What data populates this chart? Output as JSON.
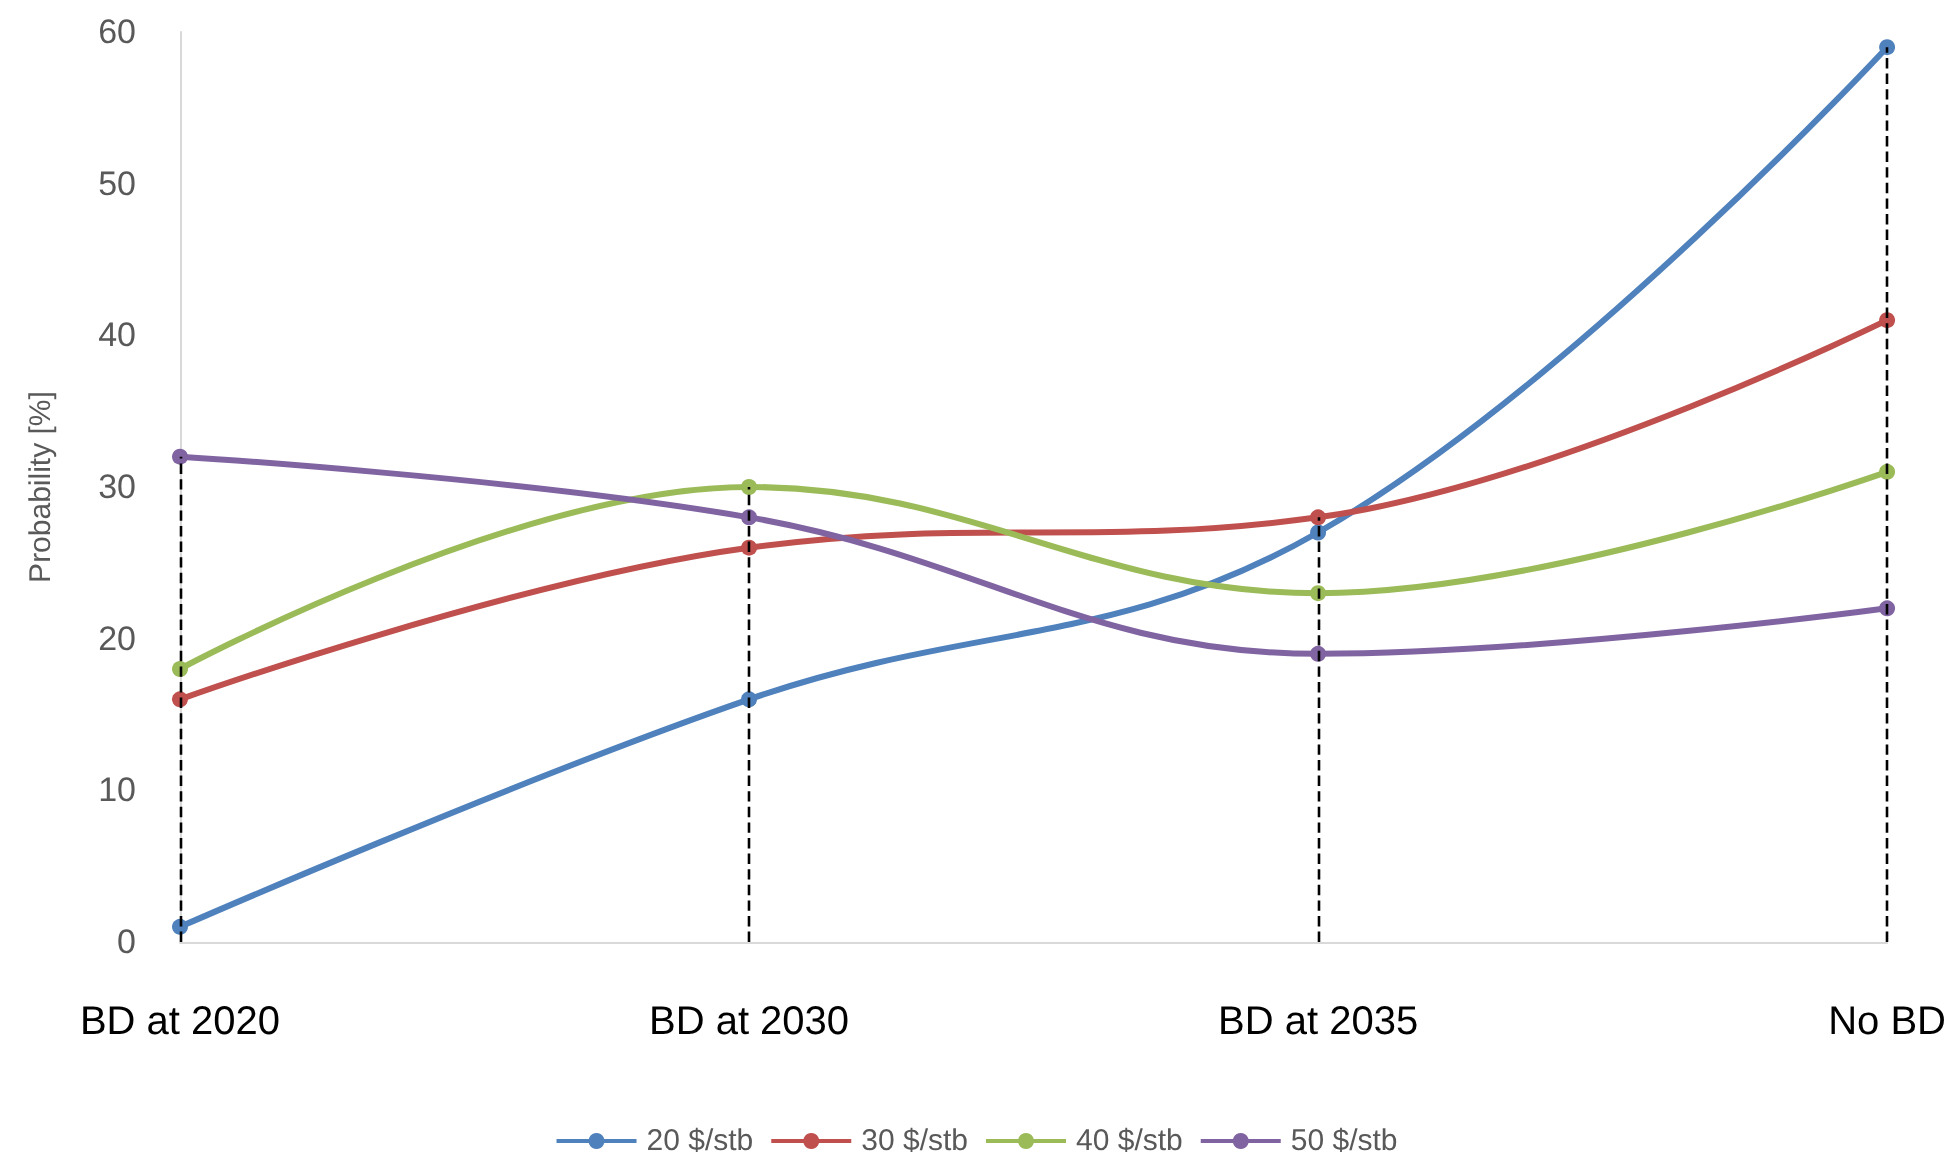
{
  "chart_data": {
    "type": "line",
    "ylabel": "Probability [%]",
    "categories": [
      "BD at 2020",
      "BD at 2030",
      "BD at 2035",
      "No BD"
    ],
    "series": [
      {
        "name": "20 $/stb",
        "color": "#4f81bd",
        "values": [
          1,
          16,
          27,
          59
        ]
      },
      {
        "name": "30 $/stb",
        "color": "#c0504d",
        "values": [
          16,
          26,
          28,
          41
        ]
      },
      {
        "name": "40 $/stb",
        "color": "#9bbb59",
        "values": [
          18,
          30,
          23,
          31
        ]
      },
      {
        "name": "50 $/stb",
        "color": "#8064a2",
        "values": [
          32,
          28,
          19,
          22
        ]
      }
    ],
    "ylim": [
      0,
      60
    ],
    "yticks": [
      0,
      10,
      20,
      30,
      40,
      50,
      60
    ],
    "grid": false,
    "legend": "bottom",
    "marker": "circle",
    "line_style": "solid",
    "ref_lines": [
      {
        "axis": "x",
        "value": "BD at 2020",
        "color": "#000000",
        "line_style": "dashed"
      },
      {
        "axis": "x",
        "value": "BD at 2030",
        "color": "#000000",
        "line_style": "dashed"
      },
      {
        "axis": "x",
        "value": "BD at 2035",
        "color": "#000000",
        "line_style": "dashed"
      },
      {
        "axis": "x",
        "value": "No BD",
        "color": "#000000",
        "line_style": "dashed"
      }
    ]
  }
}
